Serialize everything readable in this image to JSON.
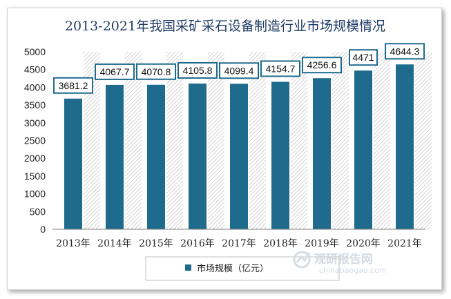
{
  "chart_data": {
    "type": "bar",
    "title": "2013-2021年我国采矿采石设备制造行业市场规模情况",
    "categories": [
      "2013年",
      "2014年",
      "2015年",
      "2016年",
      "2017年",
      "2018年",
      "2019年",
      "2020年",
      "2021年"
    ],
    "series": [
      {
        "name": "市场规模（亿元）",
        "values": [
          3681.2,
          4067.7,
          4070.8,
          4105.8,
          4099.4,
          4154.7,
          4256.6,
          4471,
          4644.3
        ],
        "data_labels": [
          "3681.2",
          "4067.7",
          "4070.8",
          "4105.8",
          "4099.4",
          "4154.7",
          "4256.6",
          "4471",
          "4644.3"
        ]
      }
    ],
    "y_ticks": [
      "0",
      "500",
      "1000",
      "1500",
      "2000",
      "2500",
      "3000",
      "3500",
      "4000",
      "4500",
      "5000"
    ],
    "ylim": [
      0,
      5000
    ],
    "grid": false,
    "legend_position": "bottom",
    "bar_color": "#1f6b8e",
    "label_border_color": "#1f6b8e"
  },
  "watermark": {
    "main": "观研报告网",
    "sub": "chinabaogao.com"
  }
}
